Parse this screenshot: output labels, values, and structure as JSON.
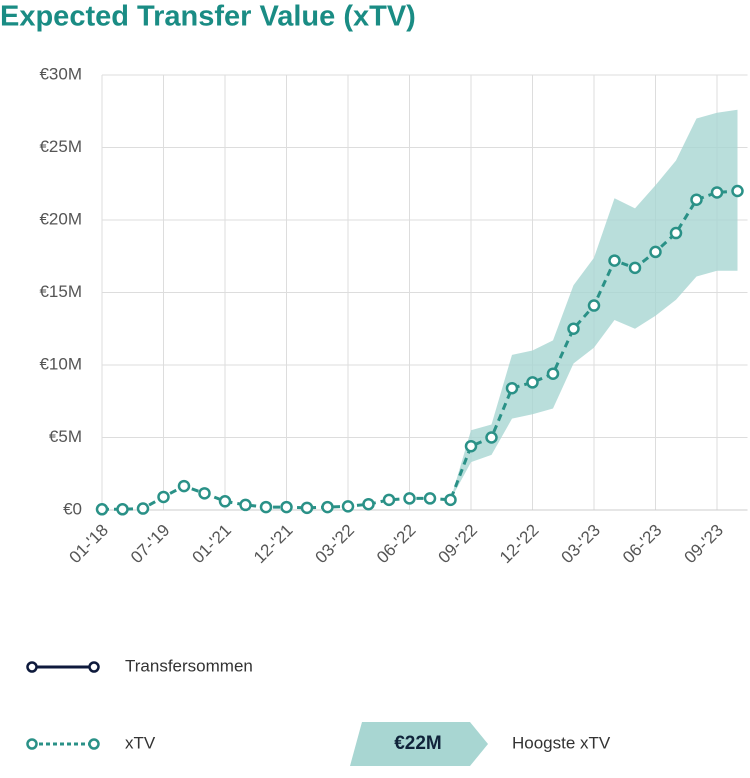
{
  "chart_data": {
    "type": "line",
    "title": "Expected Transfer Value (xTV)",
    "categories": [
      "01-'18",
      null,
      null,
      "07-'19",
      null,
      null,
      "01-'21",
      null,
      null,
      "12-'21",
      null,
      null,
      "03-'22",
      null,
      null,
      "06-'22",
      null,
      null,
      "09-'22",
      null,
      null,
      "12-'22",
      null,
      null,
      "03-'23",
      null,
      null,
      "06-'23",
      null,
      null,
      "09-'23",
      null
    ],
    "series": [
      {
        "name": "xTV",
        "color": "#2a9187",
        "band_color": "#a8d6d2",
        "values": [
          50000,
          50000,
          100000,
          900000,
          1650000,
          1150000,
          600000,
          350000,
          200000,
          200000,
          150000,
          200000,
          250000,
          400000,
          700000,
          800000,
          800000,
          700000,
          4400000,
          5000000,
          8400000,
          8800000,
          9400000,
          12500000,
          14100000,
          17200000,
          16700000,
          17800000,
          19100000,
          21400000,
          21900000,
          22000000
        ],
        "lower": [
          null,
          null,
          null,
          null,
          null,
          null,
          null,
          null,
          null,
          null,
          null,
          null,
          null,
          null,
          null,
          null,
          null,
          700000,
          3300000,
          3800000,
          6300000,
          6600000,
          7000000,
          10100000,
          11200000,
          13100000,
          12500000,
          13400000,
          14500000,
          16100000,
          16500000,
          16500000
        ],
        "upper": [
          null,
          null,
          null,
          null,
          null,
          null,
          null,
          null,
          null,
          null,
          null,
          null,
          null,
          null,
          null,
          null,
          null,
          700000,
          5500000,
          5900000,
          10700000,
          11000000,
          11700000,
          15500000,
          17400000,
          21500000,
          20800000,
          22400000,
          24100000,
          27000000,
          27400000,
          27600000
        ]
      }
    ],
    "ylim": [
      0,
      30000000
    ],
    "yticks": [
      {
        "value": 0,
        "label": "€0"
      },
      {
        "value": 5000000,
        "label": "€5M"
      },
      {
        "value": 10000000,
        "label": "€10M"
      },
      {
        "value": 15000000,
        "label": "€15M"
      },
      {
        "value": 20000000,
        "label": "€20M"
      },
      {
        "value": 25000000,
        "label": "€25M"
      },
      {
        "value": 30000000,
        "label": "€30M"
      }
    ],
    "grid": true,
    "legend": [
      {
        "label": "Transfersommen",
        "color": "#0e1a3c"
      },
      {
        "label": "Hoogste xTV",
        "badge": "€22M"
      }
    ]
  }
}
